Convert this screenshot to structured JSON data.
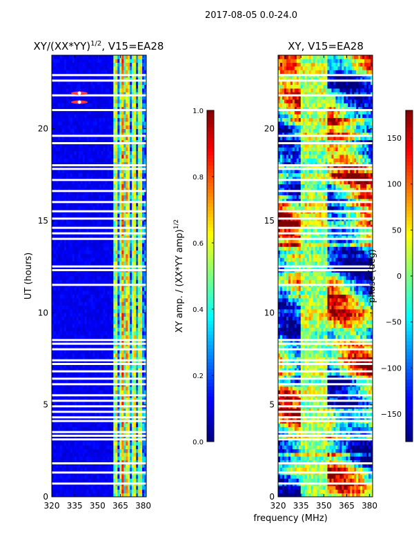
{
  "suptitle": "2017-08-05 0.0-24.0",
  "colors": {
    "jet": [
      "#00007f",
      "#0000ff",
      "#007fff",
      "#00ffff",
      "#7fff7f",
      "#ffff00",
      "#ff7f00",
      "#ff0000",
      "#7f0000"
    ],
    "gap": "#ffffff"
  },
  "chart_data": [
    {
      "type": "heatmap",
      "title_main": "XY/(XX*YY)",
      "title_exp": "1/2",
      "title_suffix": ", V15=EA28",
      "xlabel": "",
      "ylabel": "UT (hours)",
      "xlim": [
        320,
        382
      ],
      "ylim": [
        0,
        24
      ],
      "x_ticks": [
        320,
        335,
        350,
        365,
        380
      ],
      "y_ticks": [
        0,
        5,
        10,
        15,
        20
      ],
      "colorbar": {
        "label_main": "XY amp. / (XX*YY amp)",
        "label_exp": "1/2",
        "range": [
          0.0,
          1.0
        ],
        "ticks": [
          "0.0",
          "0.2",
          "0.4",
          "0.6",
          "0.8",
          "1.0"
        ],
        "tick_values": [
          0.0,
          0.2,
          0.4,
          0.6,
          0.8,
          1.0
        ]
      }
    },
    {
      "type": "heatmap",
      "title_main": "XY, V15=EA28",
      "xlabel": "frequency (MHz)",
      "ylabel": "",
      "xlim": [
        320,
        382
      ],
      "ylim": [
        0,
        24
      ],
      "x_ticks": [
        320,
        335,
        350,
        365,
        380
      ],
      "y_ticks": [
        0,
        5,
        10,
        15,
        20
      ],
      "colorbar": {
        "label_main": "phase (deg)",
        "range": [
          -180,
          180
        ],
        "ticks": [
          "150",
          "100",
          "50",
          "0",
          "−50",
          "−100",
          "−150"
        ],
        "tick_values": [
          150,
          100,
          50,
          0,
          -50,
          -100,
          -150
        ]
      }
    }
  ],
  "gaps_ut_hours": [
    0.7,
    1.3,
    1.8,
    3.1,
    3.3,
    3.5,
    4.1,
    4.3,
    4.6,
    4.9,
    5.2,
    5.5,
    6.1,
    6.4,
    6.8,
    7.2,
    7.4,
    8.0,
    8.3,
    8.5,
    11.5,
    12.3,
    12.5,
    14.0,
    14.3,
    14.6,
    15.1,
    15.5,
    16.0,
    16.6,
    17.2,
    17.8,
    18.0,
    19.2,
    19.6,
    21.0,
    21.8,
    22.6,
    22.9
  ]
}
